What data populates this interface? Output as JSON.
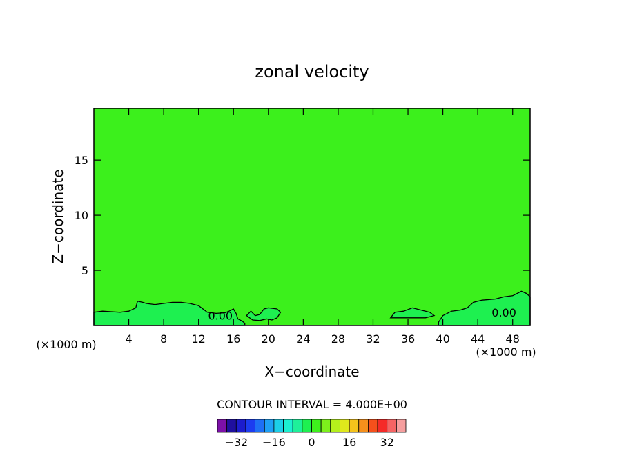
{
  "chart_data": {
    "type": "heatmap",
    "title": "zonal velocity",
    "xlabel": "X−coordinate",
    "ylabel": "Z−coordinate",
    "x_unit_left": "(×1000 m)",
    "x_unit_right": "(×1000 m)",
    "xlim": [
      0,
      50
    ],
    "ylim": [
      0,
      19.7
    ],
    "x_ticks": [
      4,
      8,
      12,
      16,
      20,
      24,
      28,
      32,
      36,
      40,
      44,
      48
    ],
    "y_ticks": [
      5,
      10,
      15
    ],
    "contour_interval_text": "CONTOUR INTERVAL = 4.000E+00",
    "contour_labels": [
      {
        "x": 14.5,
        "z": 0.9,
        "text": "0.00"
      },
      {
        "x": 47.0,
        "z": 1.2,
        "text": "0.00"
      }
    ],
    "colorbar": {
      "levels": [
        -36,
        -32,
        -28,
        -24,
        -20,
        -16,
        -12,
        -8,
        -4,
        0,
        4,
        8,
        12,
        16,
        20,
        24,
        28,
        32,
        36
      ],
      "tick_values": [
        -32,
        -16,
        0,
        16,
        32
      ],
      "tick_labels": [
        "−32",
        "−16",
        "0",
        "16",
        "32"
      ],
      "colors": [
        "#7d10a8",
        "#1f0f9e",
        "#1c1ccd",
        "#1c3cf0",
        "#1e6ff5",
        "#1ea0f5",
        "#1ccfe8",
        "#1cf0d0",
        "#1ef09a",
        "#1ef050",
        "#3ef01c",
        "#7df01c",
        "#b4f01c",
        "#e0e81c",
        "#f5c31c",
        "#f58f1c",
        "#f5501c",
        "#f52a28",
        "#f56464",
        "#f59e9e"
      ]
    },
    "background_color": "#3cf01c",
    "positive_region_color": "#1ef050",
    "regions": [
      {
        "name": "low-level-band-left",
        "value": "0 to 4",
        "outline": [
          [
            0,
            1.2
          ],
          [
            1,
            1.3
          ],
          [
            2,
            1.25
          ],
          [
            3,
            1.2
          ],
          [
            4,
            1.3
          ],
          [
            4.8,
            1.6
          ],
          [
            5,
            2.2
          ],
          [
            5.6,
            2.1
          ],
          [
            6,
            2.0
          ],
          [
            7,
            1.9
          ],
          [
            8,
            2.0
          ],
          [
            9,
            2.1
          ],
          [
            10,
            2.1
          ],
          [
            11,
            2.0
          ],
          [
            12,
            1.8
          ],
          [
            12.5,
            1.5
          ],
          [
            13,
            1.2
          ],
          [
            14,
            1.1
          ],
          [
            15,
            1.15
          ],
          [
            15.5,
            1.3
          ],
          [
            16,
            1.5
          ],
          [
            16.3,
            1.1
          ],
          [
            16.5,
            0.6
          ],
          [
            17,
            0.4
          ],
          [
            17.3,
            0.2
          ],
          [
            17.3,
            0
          ],
          [
            0,
            0
          ]
        ]
      },
      {
        "name": "low-level-band-middle",
        "value": "0 to 4",
        "outline": [
          [
            17.5,
            0.9
          ],
          [
            18,
            1.3
          ],
          [
            18.5,
            0.9
          ],
          [
            19,
            1.0
          ],
          [
            19.5,
            1.5
          ],
          [
            20,
            1.6
          ],
          [
            21,
            1.5
          ],
          [
            21.4,
            1.2
          ],
          [
            21,
            0.7
          ],
          [
            20.4,
            0.5
          ],
          [
            19.8,
            0.6
          ],
          [
            19,
            0.45
          ],
          [
            18.2,
            0.5
          ]
        ]
      },
      {
        "name": "low-level-band-right",
        "value": "0 to 4",
        "outline": [
          [
            34,
            0.7
          ],
          [
            34.5,
            1.2
          ],
          [
            35.5,
            1.3
          ],
          [
            36.5,
            1.6
          ],
          [
            37.5,
            1.4
          ],
          [
            38.5,
            1.2
          ],
          [
            39,
            0.9
          ],
          [
            38,
            0.7
          ],
          [
            36,
            0.7
          ]
        ]
      },
      {
        "name": "low-level-band-far-right",
        "value": "0 to 4",
        "outline": [
          [
            39.5,
            0.3
          ],
          [
            40,
            0.9
          ],
          [
            41,
            1.3
          ],
          [
            42,
            1.4
          ],
          [
            42.8,
            1.6
          ],
          [
            43.5,
            2.1
          ],
          [
            44.5,
            2.3
          ],
          [
            46,
            2.4
          ],
          [
            47,
            2.6
          ],
          [
            48,
            2.7
          ],
          [
            49,
            3.1
          ],
          [
            49.6,
            2.9
          ],
          [
            50,
            2.6
          ],
          [
            50,
            0
          ],
          [
            39.5,
            0
          ]
        ]
      }
    ]
  }
}
